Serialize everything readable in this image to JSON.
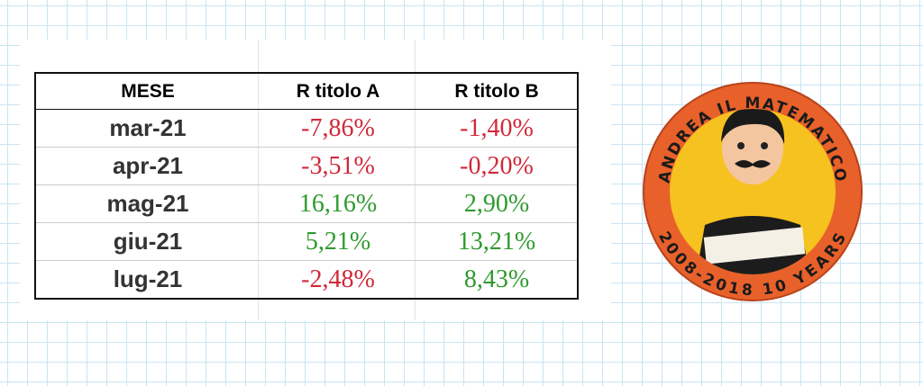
{
  "table": {
    "header": [
      "MESE",
      "R titolo A",
      "R titolo B"
    ],
    "rows": [
      [
        "mar-21",
        "-7,86%",
        "-1,40%"
      ],
      [
        "apr-21",
        "-3,51%",
        "-0,20%"
      ],
      [
        "mag-21",
        "16,16%",
        "2,90%"
      ],
      [
        "giu-21",
        "5,21%",
        "13,21%"
      ],
      [
        "lug-21",
        "-2,48%",
        "8,43%"
      ]
    ],
    "negative_color": "#d0283a",
    "positive_color": "#2e9a2e"
  },
  "logo": {
    "top_text": "ANDREA IL MATEMATICO",
    "bottom_text": "2008-2018 10 YEARS"
  }
}
